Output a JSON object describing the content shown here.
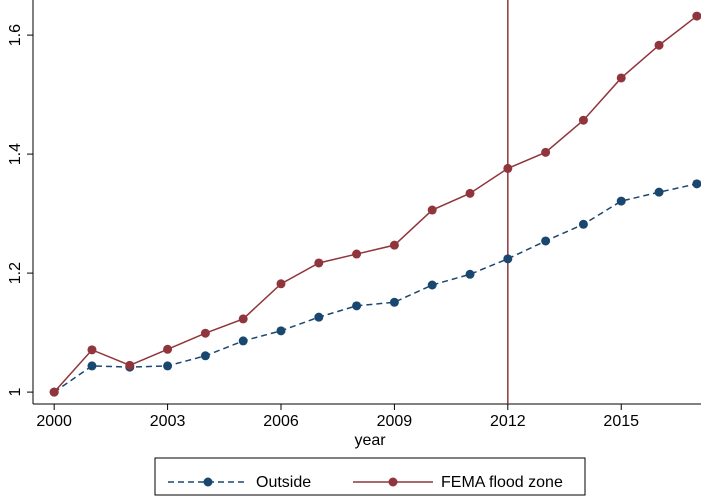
{
  "chart_data": {
    "type": "line",
    "x_label": "year",
    "x": [
      2000,
      2001,
      2002,
      2003,
      2004,
      2005,
      2006,
      2007,
      2008,
      2009,
      2010,
      2011,
      2012,
      2013,
      2014,
      2015,
      2016,
      2017
    ],
    "series": [
      {
        "name": "Outside",
        "color": "#1a476f",
        "dashed": true,
        "values": [
          1,
          1.044,
          1.042,
          1.044,
          1.061,
          1.086,
          1.103,
          1.126,
          1.145,
          1.151,
          1.18,
          1.198,
          1.224,
          1.254,
          1.282,
          1.321,
          1.336,
          1.35
        ]
      },
      {
        "name": "FEMA flood zone",
        "color": "#90353b",
        "dashed": false,
        "values": [
          1,
          1.071,
          1.045,
          1.072,
          1.099,
          1.123,
          1.182,
          1.217,
          1.232,
          1.247,
          1.306,
          1.334,
          1.376,
          1.403,
          1.457,
          1.528,
          1.583,
          1.632
        ]
      }
    ],
    "vline": {
      "x": 2012,
      "color": "#90353b"
    },
    "xlim": [
      1999.44,
      2017.11
    ],
    "xticks": [
      2000,
      2003,
      2006,
      2009,
      2012,
      2015
    ],
    "ylim": [
      0.98,
      1.659
    ],
    "yticks": [
      1,
      1.2,
      1.4,
      1.6
    ]
  }
}
